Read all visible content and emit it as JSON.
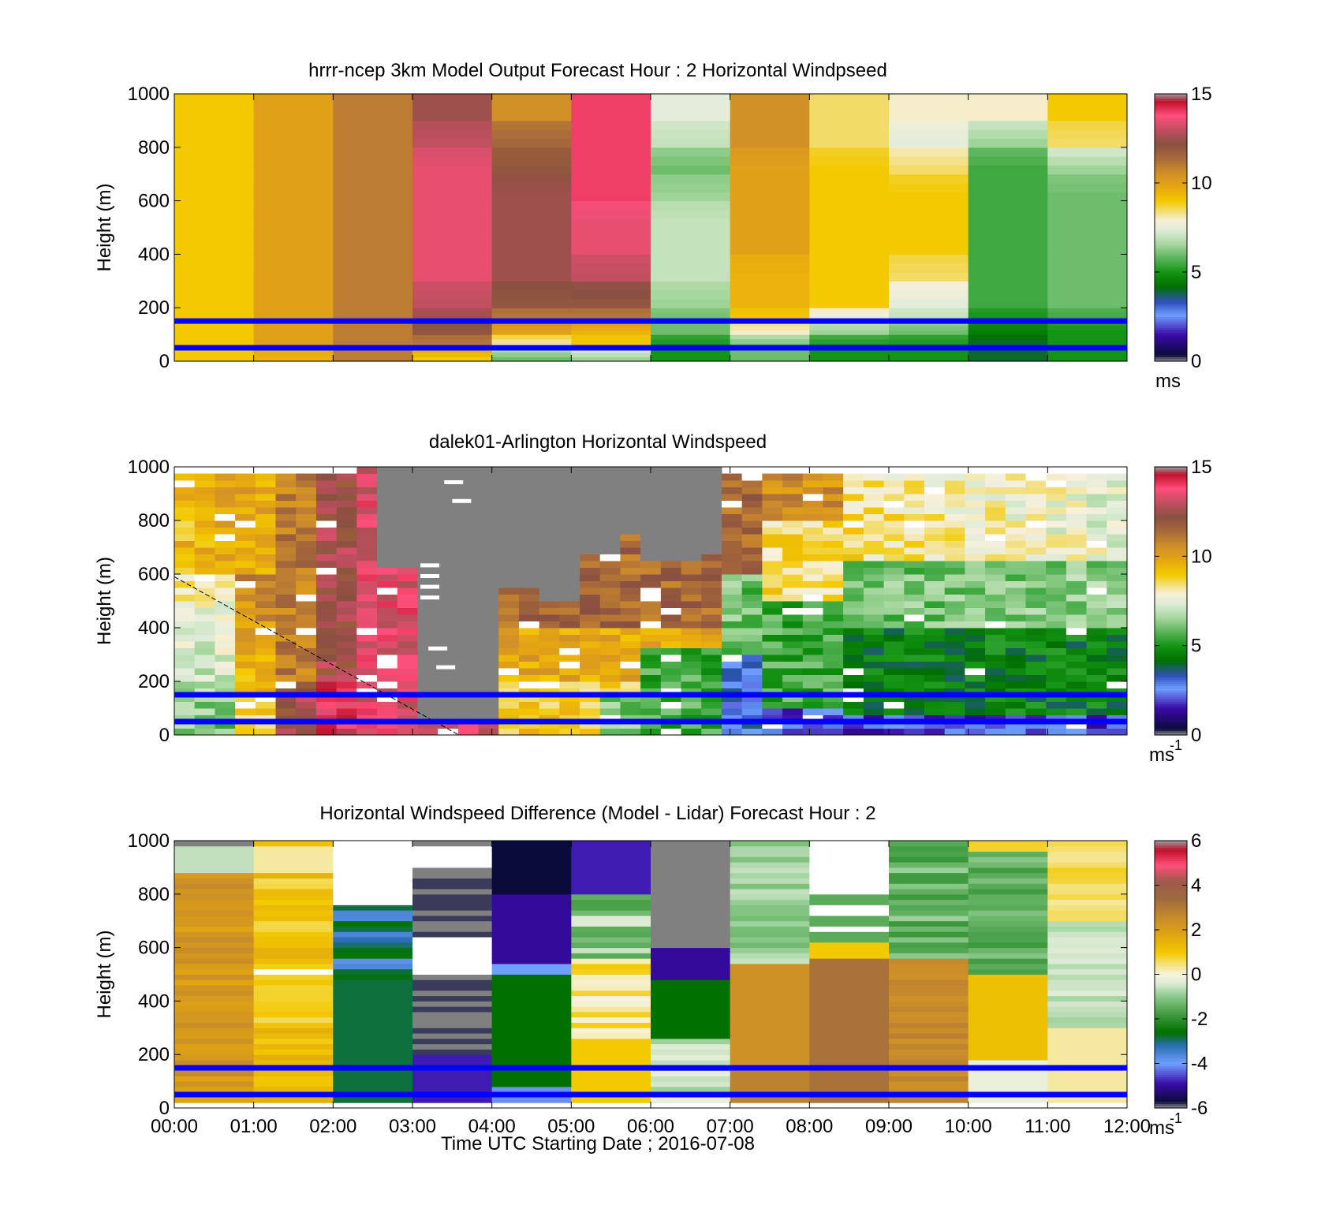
{
  "figure": {
    "xlabel": "Time UTC  Starting Date ; 2016-07-08",
    "x_ticks": [
      "00:00",
      "01:00",
      "02:00",
      "03:00",
      "04:00",
      "05:00",
      "06:00",
      "07:00",
      "08:00",
      "09:00",
      "10:00",
      "11:00",
      "12:00"
    ],
    "y_ticks": [
      "0",
      "200",
      "400",
      "600",
      "800",
      "1000"
    ],
    "ylabel": "Height (m)",
    "reference_lines_m": [
      150,
      50
    ],
    "reference_line_color": "#0000ff"
  },
  "chart_data": [
    {
      "type": "heatmap",
      "title": "hrrr-ncep 3km Model Output   Forecast Hour : 2 Horizontal Windpseed",
      "ylabel": "Height (m)",
      "x": [
        "00:00",
        "01:00",
        "02:00",
        "03:00",
        "04:00",
        "05:00",
        "06:00",
        "07:00",
        "08:00",
        "09:00",
        "10:00",
        "11:00"
      ],
      "xlim": [
        "00:00",
        "12:00"
      ],
      "ylim": [
        0,
        1000
      ],
      "heights": [
        25,
        75,
        125,
        175,
        250,
        350,
        450,
        550,
        650,
        750,
        850,
        950
      ],
      "values": [
        [
          9,
          9.5,
          11,
          9,
          6,
          6.5,
          5,
          6,
          5,
          5,
          4,
          5
        ],
        [
          9,
          10,
          11,
          11,
          8,
          9,
          5,
          6,
          5,
          5,
          4,
          5
        ],
        [
          9,
          10,
          11,
          12,
          10,
          9.5,
          6,
          8,
          6.5,
          6,
          4.5,
          5
        ],
        [
          9,
          10,
          11,
          12.5,
          11,
          11,
          6,
          9,
          7.5,
          7,
          5,
          5.5
        ],
        [
          9,
          10,
          11,
          13,
          12,
          12,
          6.5,
          9.5,
          9,
          7.5,
          5.5,
          6
        ],
        [
          9,
          10,
          11,
          13.5,
          12.5,
          13,
          7,
          9.5,
          9,
          8.5,
          5.5,
          6
        ],
        [
          9,
          10,
          11,
          13.5,
          12.5,
          13.5,
          7,
          10,
          9,
          9,
          5.5,
          6
        ],
        [
          9,
          10,
          11,
          13.5,
          12.5,
          13.5,
          7,
          10,
          9,
          9,
          5.5,
          6
        ],
        [
          9,
          10,
          11,
          13.5,
          12.5,
          14,
          6.5,
          10,
          9,
          9,
          5.5,
          6
        ],
        [
          9,
          10,
          11,
          13.5,
          12,
          14,
          6,
          10,
          9,
          8.5,
          5.5,
          6.5
        ],
        [
          9,
          10,
          11,
          13,
          11.5,
          14,
          7,
          10.5,
          8.5,
          7.5,
          6.5,
          8.5
        ],
        [
          9,
          10,
          11,
          12.5,
          10.5,
          14,
          7.5,
          10.5,
          8.5,
          8,
          8,
          9
        ]
      ],
      "colorbar": {
        "min": 0,
        "max": 15,
        "ticks": [
          "0",
          "5",
          "10",
          "15"
        ],
        "unit": "ms",
        "unit_sup": ""
      }
    },
    {
      "type": "heatmap",
      "title": "dalek01-Arlington  Horizontal Windspeed",
      "ylabel": "Height (m)",
      "xlim": [
        "00:00",
        "12:00"
      ],
      "ylim": [
        0,
        1000
      ],
      "note_missing_color": "#808080",
      "columns": 47,
      "rows": 24,
      "dashed_line": {
        "from_time": "00:00",
        "from_height_m": 590,
        "to_time": "03:35",
        "to_height_m": 0
      },
      "colorbar": {
        "min": 0,
        "max": 15,
        "ticks": [
          "0",
          "5",
          "10",
          "15"
        ],
        "unit": "ms",
        "unit_sup": "-1"
      }
    },
    {
      "type": "heatmap",
      "title": "Horizontal Windspeed Difference (Model - Lidar) Forecast Hour : 2",
      "ylabel": "Height (m)",
      "xlabel": "Time UTC  Starting Date ; 2016-07-08",
      "x": [
        "00:00",
        "01:00",
        "02:00",
        "03:00",
        "04:00",
        "05:00",
        "06:00",
        "07:00",
        "08:00",
        "09:00",
        "10:00",
        "11:00"
      ],
      "xlim": [
        "00:00",
        "12:00"
      ],
      "ylim": [
        0,
        1000
      ],
      "colorbar": {
        "min": -6,
        "max": 6,
        "ticks": [
          "-6",
          "-4",
          "-2",
          "0",
          "2",
          "4",
          "6"
        ],
        "unit": "ms",
        "unit_sup": "-1"
      }
    }
  ]
}
